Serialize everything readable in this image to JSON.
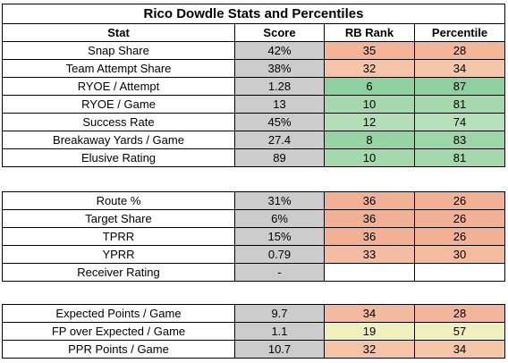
{
  "title": "Rico Dowdle Stats and Percentiles",
  "headers": {
    "stat": "Stat",
    "score": "Score",
    "rank": "RB Rank",
    "percentile": "Percentile"
  },
  "colors": {
    "score_bg": "#cccccc",
    "rank_fill": {
      "6": "#8fd19e",
      "8": "#97d4a3",
      "10": "#a4d9ac",
      "12": "#b4dfb6",
      "19": "#eff0bc",
      "32": "#f5c4a6",
      "33": "#f4bda1",
      "34": "#f4ba9e",
      "35": "#f3b49a",
      "36": "#f2b195"
    },
    "pct_fill": {
      "26": "#f2b195",
      "28": "#f3b69b",
      "30": "#f4bb9f",
      "34": "#f5c6a8",
      "57": "#eef0bd",
      "74": "#b6e0b7",
      "81": "#a4d9ac",
      "83": "#9dd6a7",
      "87": "#8fd19e"
    }
  },
  "sections": [
    {
      "id": "rushing",
      "rows": [
        {
          "stat": "Snap Share",
          "score": "42%",
          "rank": "35",
          "percentile": "28"
        },
        {
          "stat": "Team Attempt Share",
          "score": "38%",
          "rank": "32",
          "percentile": "34"
        },
        {
          "stat": "RYOE / Attempt",
          "score": "1.28",
          "rank": "6",
          "percentile": "87"
        },
        {
          "stat": "RYOE / Game",
          "score": "13",
          "rank": "10",
          "percentile": "81"
        },
        {
          "stat": "Success Rate",
          "score": "45%",
          "rank": "12",
          "percentile": "74"
        },
        {
          "stat": "Breakaway Yards / Game",
          "score": "27.4",
          "rank": "8",
          "percentile": "83"
        },
        {
          "stat": "Elusive Rating",
          "score": "89",
          "rank": "10",
          "percentile": "81"
        }
      ]
    },
    {
      "id": "receiving",
      "rows": [
        {
          "stat": "Route %",
          "score": "31%",
          "rank": "36",
          "percentile": "26"
        },
        {
          "stat": "Target Share",
          "score": "6%",
          "rank": "36",
          "percentile": "26"
        },
        {
          "stat": "TPRR",
          "score": "15%",
          "rank": "36",
          "percentile": "26"
        },
        {
          "stat": "YPRR",
          "score": "0.79",
          "rank": "33",
          "percentile": "30"
        },
        {
          "stat": "Receiver Rating",
          "score": "-",
          "rank": "",
          "percentile": ""
        }
      ]
    },
    {
      "id": "fantasy",
      "rows": [
        {
          "stat": "Expected Points / Game",
          "score": "9.7",
          "rank": "34",
          "percentile": "28"
        },
        {
          "stat": "FP over Expected / Game",
          "score": "1.1",
          "rank": "19",
          "percentile": "57"
        },
        {
          "stat": "PPR Points / Game",
          "score": "10.7",
          "rank": "32",
          "percentile": "34"
        }
      ]
    }
  ]
}
